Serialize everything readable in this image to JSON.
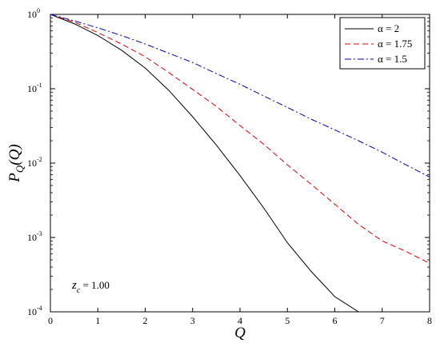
{
  "chart_data": {
    "type": "line",
    "xlabel": "Q",
    "ylabel": "P_Q(Q)",
    "xlim": [
      0,
      8
    ],
    "ylim": [
      0.0001,
      1
    ],
    "yscale": "log",
    "x_ticks": [
      "0",
      "1",
      "2",
      "3",
      "4",
      "5",
      "6",
      "7",
      "8"
    ],
    "y_ticks": [
      {
        "base": "10",
        "exp": "0",
        "value": 1
      },
      {
        "base": "10",
        "exp": "-1",
        "value": 0.1
      },
      {
        "base": "10",
        "exp": "-2",
        "value": 0.01
      },
      {
        "base": "10",
        "exp": "-3",
        "value": 0.001
      },
      {
        "base": "10",
        "exp": "-4",
        "value": 0.0001
      }
    ],
    "grid": false,
    "legend_position": "top-right",
    "annotation": {
      "symbol": "z",
      "subscript": "c",
      "text": " = 1.00"
    },
    "series": [
      {
        "name": "α = 2",
        "color": "#000000",
        "dash": "solid",
        "x": [
          0,
          0.5,
          1,
          1.5,
          2,
          2.5,
          3,
          3.5,
          4,
          4.5,
          5,
          5.5,
          6,
          6.5,
          6.85
        ],
        "y": [
          1.0,
          0.75,
          0.52,
          0.33,
          0.19,
          0.095,
          0.042,
          0.0175,
          0.0068,
          0.0025,
          0.00085,
          0.00035,
          0.00016,
          0.0001,
          0.0001
        ]
      },
      {
        "name": "α = 1.75",
        "color": "#dd0000",
        "dash": "dashed",
        "x": [
          0,
          0.5,
          1,
          1.5,
          2,
          2.5,
          3,
          3.5,
          4,
          4.5,
          5,
          5.5,
          6,
          6.5,
          7,
          7.5,
          8
        ],
        "y": [
          1.0,
          0.79,
          0.57,
          0.4,
          0.27,
          0.165,
          0.098,
          0.058,
          0.032,
          0.018,
          0.0095,
          0.0052,
          0.0028,
          0.0015,
          0.0009,
          0.00065,
          0.00045
        ]
      },
      {
        "name": "α = 1.5",
        "color": "#0000bb",
        "dash": "dashdot",
        "x": [
          0,
          0.5,
          1,
          1.5,
          2,
          2.5,
          3,
          3.5,
          4,
          4.5,
          5,
          5.5,
          6,
          6.5,
          7,
          7.5,
          8
        ],
        "y": [
          1.0,
          0.82,
          0.66,
          0.52,
          0.4,
          0.3,
          0.225,
          0.16,
          0.115,
          0.08,
          0.056,
          0.039,
          0.028,
          0.02,
          0.014,
          0.0095,
          0.0065
        ]
      }
    ]
  },
  "colors": {
    "background": "#ffffff",
    "axes": "#000000"
  }
}
